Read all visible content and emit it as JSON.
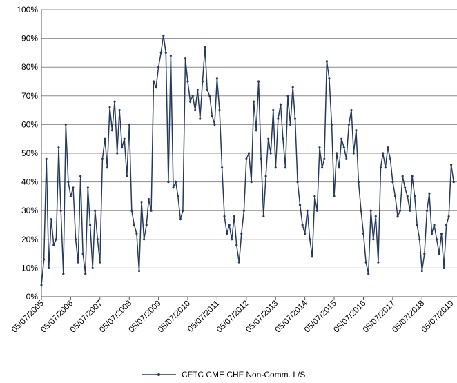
{
  "chart_data": {
    "type": "line",
    "x": [
      "2005-07-05",
      "2005-08-05",
      "2005-09-05",
      "2005-10-05",
      "2005-11-05",
      "2005-12-05",
      "2006-01-05",
      "2006-02-05",
      "2006-03-05",
      "2006-04-05",
      "2006-05-05",
      "2006-06-05",
      "2006-07-05",
      "2006-08-05",
      "2006-09-05",
      "2006-10-05",
      "2006-11-05",
      "2006-12-05",
      "2007-01-05",
      "2007-02-05",
      "2007-03-05",
      "2007-04-05",
      "2007-05-05",
      "2007-06-05",
      "2007-07-05",
      "2007-08-05",
      "2007-09-05",
      "2007-10-05",
      "2007-11-05",
      "2007-12-05",
      "2008-01-05",
      "2008-02-05",
      "2008-03-05",
      "2008-04-05",
      "2008-05-05",
      "2008-06-05",
      "2008-07-05",
      "2008-08-05",
      "2008-09-05",
      "2008-10-05",
      "2008-11-05",
      "2008-12-05",
      "2009-01-05",
      "2009-02-05",
      "2009-03-05",
      "2009-04-05",
      "2009-05-05",
      "2009-06-05",
      "2009-07-05",
      "2009-08-05",
      "2009-09-05",
      "2009-10-05",
      "2009-11-05",
      "2009-12-05",
      "2010-01-05",
      "2010-02-05",
      "2010-03-05",
      "2010-04-05",
      "2010-05-05",
      "2010-06-05",
      "2010-07-05",
      "2010-08-05",
      "2010-09-05",
      "2010-10-05",
      "2010-11-05",
      "2010-12-05",
      "2011-01-05",
      "2011-02-05",
      "2011-03-05",
      "2011-04-05",
      "2011-05-05",
      "2011-06-05",
      "2011-07-05",
      "2011-08-05",
      "2011-09-05",
      "2011-10-05",
      "2011-11-05",
      "2011-12-05",
      "2012-01-05",
      "2012-02-05",
      "2012-03-05",
      "2012-04-05",
      "2012-05-05",
      "2012-06-05",
      "2012-07-05",
      "2012-08-05",
      "2012-09-05",
      "2012-10-05",
      "2012-11-05",
      "2012-12-05",
      "2013-01-05",
      "2013-02-05",
      "2013-03-05",
      "2013-04-05",
      "2013-05-05",
      "2013-06-05",
      "2013-07-05",
      "2013-08-05",
      "2013-09-05",
      "2013-10-05",
      "2013-11-05",
      "2013-12-05",
      "2014-01-05",
      "2014-02-05",
      "2014-03-05",
      "2014-04-05",
      "2014-05-05",
      "2014-06-05",
      "2014-07-05",
      "2014-08-05",
      "2014-09-05",
      "2014-10-05",
      "2014-11-05",
      "2014-12-05",
      "2015-01-05",
      "2015-02-05",
      "2015-03-05",
      "2015-04-05",
      "2015-05-05",
      "2015-06-05",
      "2015-07-05",
      "2015-08-05",
      "2015-09-05",
      "2015-10-05",
      "2015-11-05",
      "2015-12-05",
      "2016-01-05",
      "2016-02-05",
      "2016-03-05",
      "2016-04-05",
      "2016-05-05",
      "2016-06-05",
      "2016-07-05",
      "2016-08-05",
      "2016-09-05",
      "2016-10-05",
      "2016-11-05",
      "2016-12-05",
      "2017-01-05",
      "2017-02-05",
      "2017-03-05",
      "2017-04-05",
      "2017-05-05",
      "2017-06-05",
      "2017-07-05",
      "2017-08-05",
      "2017-09-05",
      "2017-10-05",
      "2017-11-05",
      "2017-12-05",
      "2018-01-05",
      "2018-02-05",
      "2018-03-05",
      "2018-04-05",
      "2018-05-05",
      "2018-06-05",
      "2018-07-05",
      "2018-08-05",
      "2018-09-05",
      "2018-10-05",
      "2018-11-05",
      "2018-12-05",
      "2019-01-05",
      "2019-02-05",
      "2019-03-05",
      "2019-04-05",
      "2019-05-05",
      "2019-06-05",
      "2019-07-05",
      "2019-08-05"
    ],
    "series": [
      {
        "name": "CFTC CME CHF Non-Comm. L/S",
        "color": "#253a5c",
        "values": [
          4,
          13,
          48,
          10,
          27,
          18,
          20,
          52,
          30,
          8,
          60,
          40,
          35,
          38,
          20,
          12,
          42,
          15,
          8,
          38,
          25,
          10,
          30,
          20,
          12,
          48,
          55,
          45,
          66,
          58,
          68,
          50,
          65,
          52,
          55,
          42,
          60,
          30,
          25,
          22,
          9,
          33,
          20,
          25,
          34,
          30,
          75,
          73,
          80,
          85,
          91,
          85,
          40,
          84,
          38,
          40,
          35,
          27,
          30,
          83,
          75,
          68,
          70,
          65,
          72,
          62,
          75,
          87,
          72,
          70,
          63,
          60,
          76,
          65,
          45,
          28,
          22,
          25,
          20,
          28,
          18,
          12,
          22,
          30,
          48,
          50,
          40,
          68,
          58,
          75,
          48,
          28,
          42,
          55,
          50,
          65,
          45,
          62,
          67,
          55,
          45,
          70,
          60,
          73,
          62,
          40,
          32,
          25,
          22,
          30,
          20,
          14,
          35,
          30,
          52,
          45,
          48,
          82,
          76,
          60,
          35,
          50,
          45,
          55,
          52,
          48,
          60,
          65,
          50,
          58,
          40,
          30,
          22,
          12,
          8,
          30,
          20,
          28,
          12,
          45,
          50,
          45,
          52,
          48,
          40,
          35,
          28,
          30,
          42,
          38,
          35,
          30,
          42,
          35,
          25,
          20,
          9,
          15,
          30,
          36,
          22,
          25,
          20,
          15,
          22,
          10,
          25,
          28,
          46,
          40
        ]
      }
    ],
    "xlim": [
      "2005-07-05",
      "2019-09-15"
    ],
    "xticks": [
      {
        "value": "2005-07-05",
        "label": "05/07/2005"
      },
      {
        "value": "2006-07-05",
        "label": "05/07/2006"
      },
      {
        "value": "2007-07-05",
        "label": "05/07/2007"
      },
      {
        "value": "2008-07-05",
        "label": "05/07/2008"
      },
      {
        "value": "2009-07-05",
        "label": "05/07/2009"
      },
      {
        "value": "2010-07-05",
        "label": "05/07/2010"
      },
      {
        "value": "2011-07-05",
        "label": "05/07/2011"
      },
      {
        "value": "2012-07-05",
        "label": "05/07/2012"
      },
      {
        "value": "2013-07-05",
        "label": "05/07/2013"
      },
      {
        "value": "2014-07-05",
        "label": "05/07/2014"
      },
      {
        "value": "2015-07-05",
        "label": "05/07/2015"
      },
      {
        "value": "2016-07-05",
        "label": "05/07/2016"
      },
      {
        "value": "2017-07-05",
        "label": "05/07/2017"
      },
      {
        "value": "2018-07-05",
        "label": "05/07/2018"
      },
      {
        "value": "2019-07-05",
        "label": "05/07/2019"
      }
    ],
    "ylim": [
      0,
      100
    ],
    "yticks": [
      {
        "value": 0,
        "label": "0%"
      },
      {
        "value": 10,
        "label": "10%"
      },
      {
        "value": 20,
        "label": "20%"
      },
      {
        "value": 30,
        "label": "30%"
      },
      {
        "value": 40,
        "label": "40%"
      },
      {
        "value": 50,
        "label": "50%"
      },
      {
        "value": 60,
        "label": "60%"
      },
      {
        "value": 70,
        "label": "70%"
      },
      {
        "value": 80,
        "label": "80%"
      },
      {
        "value": 90,
        "label": "90%"
      },
      {
        "value": 100,
        "label": "100%"
      }
    ],
    "grid": true,
    "legend": "bottom"
  }
}
